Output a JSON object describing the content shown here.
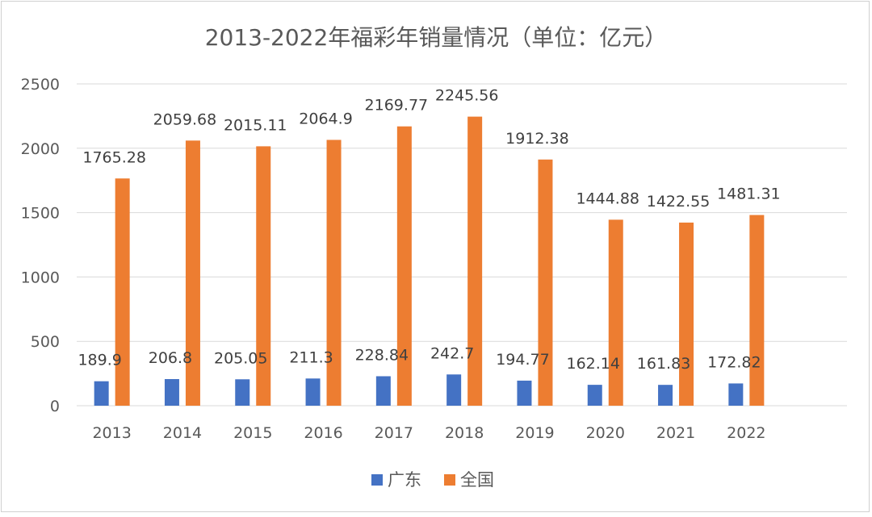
{
  "chart_data": {
    "type": "bar",
    "title": "2013-2022年福彩年销量情况（单位：亿元）",
    "xlabel": "",
    "ylabel": "",
    "categories": [
      "2013",
      "2014",
      "2015",
      "2016",
      "2017",
      "2018",
      "2019",
      "2020",
      "2021",
      "2022"
    ],
    "series": [
      {
        "name": "广东",
        "color": "#4472C4",
        "values": [
          189.9,
          206.8,
          205.05,
          211.3,
          228.84,
          242.7,
          194.77,
          162.14,
          161.83,
          172.82
        ],
        "labels": [
          "189.9",
          "206.8",
          "205.05",
          "211.3",
          "228.84",
          "242.7",
          "194.77",
          "162.14",
          "161.83",
          "172.82"
        ]
      },
      {
        "name": "全国",
        "color": "#ED7D31",
        "values": [
          1765.28,
          2059.68,
          2015.11,
          2064.9,
          2169.77,
          2245.56,
          1912.38,
          1444.88,
          1422.55,
          1481.31
        ],
        "labels": [
          "1765.28",
          "2059.68",
          "2015.11",
          "2064.9",
          "2169.77",
          "2245.56",
          "1912.38",
          "1444.88",
          "1422.55",
          "1481.31"
        ]
      }
    ],
    "ylim": [
      0,
      2500
    ],
    "yticks": [
      "0",
      "500",
      "1000",
      "1500",
      "2000",
      "2500"
    ],
    "grid": true,
    "legend_position": "bottom"
  }
}
